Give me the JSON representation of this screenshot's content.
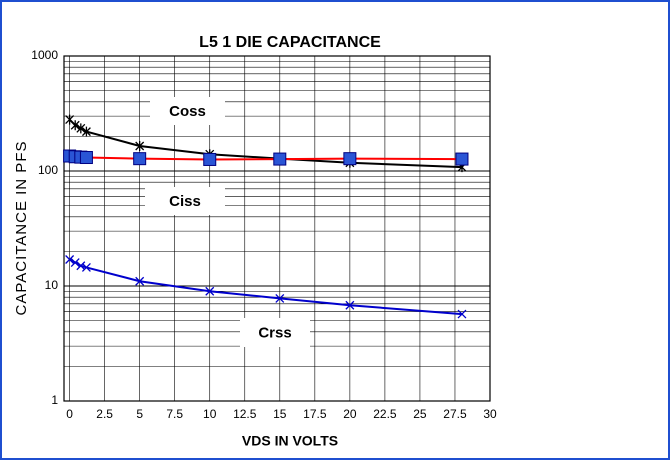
{
  "chart_data": {
    "type": "line",
    "title": "L5 1 DIE CAPACITANCE",
    "x_label": "VDS IN VOLTS",
    "y_label": "CAPACITANCE IN PFS",
    "x": [
      0,
      0.4,
      0.8,
      1.2,
      5,
      10,
      15,
      20,
      28
    ],
    "series": [
      {
        "name": "Coss",
        "color": "#000000",
        "marker": "star",
        "values": [
          280,
          250,
          235,
          220,
          165,
          140,
          128,
          118,
          108
        ]
      },
      {
        "name": "Ciss",
        "color": "#ff0000",
        "marker": "square",
        "values": [
          135,
          133,
          132,
          131,
          128,
          126,
          127,
          128,
          127
        ]
      },
      {
        "name": "Crss",
        "color": "#0000cc",
        "marker": "x",
        "values": [
          17,
          16,
          15,
          14.5,
          11,
          9,
          7.8,
          6.8,
          5.7
        ]
      }
    ],
    "annotations": [
      "Coss",
      "Ciss",
      "Crss"
    ],
    "xlim": [
      -0.4,
      30
    ],
    "xticks": [
      0,
      2.5,
      5,
      7.5,
      10,
      12.5,
      15,
      17.5,
      20,
      22.5,
      25,
      27.5,
      30
    ],
    "ylim": [
      1,
      1000
    ],
    "yticks": [
      1,
      10,
      100,
      1000
    ],
    "log_y": true,
    "grid": true
  }
}
